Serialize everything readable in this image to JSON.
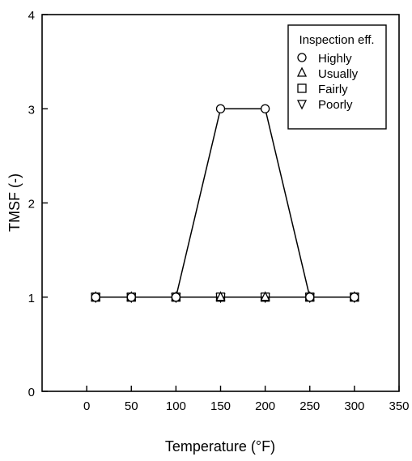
{
  "chart_data": {
    "type": "line",
    "xlabel": "Temperature (°F)",
    "ylabel": "TMSF (-)",
    "xlim": [
      -50,
      350
    ],
    "ylim": [
      0,
      4
    ],
    "xticks": [
      0,
      50,
      100,
      150,
      200,
      250,
      300,
      350
    ],
    "yticks": [
      0,
      1,
      2,
      3,
      4
    ],
    "grid": false,
    "legend": {
      "title": "Inspection eff.",
      "placement": "top-right"
    },
    "series": [
      {
        "name": "Highly",
        "marker": "○",
        "x": [
          10,
          50,
          100,
          150,
          200,
          250,
          300
        ],
        "y": [
          1,
          1,
          1,
          3,
          3,
          1,
          1
        ]
      },
      {
        "name": "Usually",
        "marker": "△",
        "x": [
          10,
          50,
          100,
          150,
          200,
          250,
          300
        ],
        "y": [
          1,
          1,
          1,
          1,
          1,
          1,
          1
        ]
      },
      {
        "name": "Fairly",
        "marker": "□",
        "x": [
          10,
          50,
          100,
          150,
          200,
          250,
          300
        ],
        "y": [
          1,
          1,
          1,
          1,
          1,
          1,
          1
        ]
      },
      {
        "name": "Poorly",
        "marker": "▽",
        "x": [
          10,
          50,
          100,
          150,
          200,
          250,
          300
        ],
        "y": [
          1,
          1,
          1,
          1,
          1,
          1,
          1
        ]
      }
    ]
  }
}
